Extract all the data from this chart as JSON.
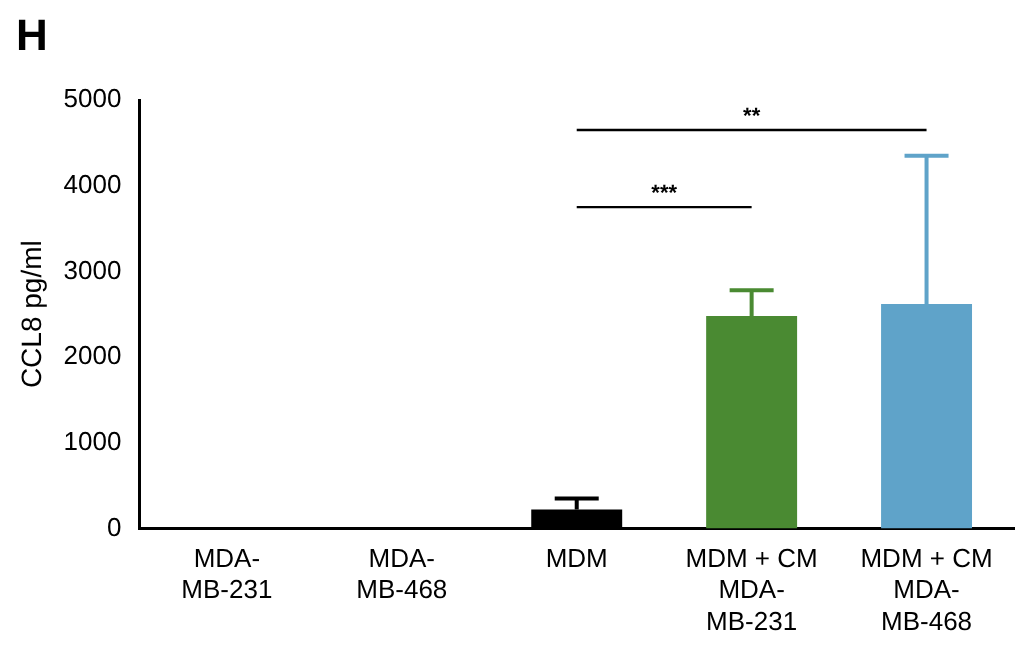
{
  "chart_data": {
    "type": "bar",
    "ylabel": "CCL8 pg/ml",
    "categories": [
      "MDA-\nMB-231",
      "MDA-\nMB-468",
      "MDM",
      "MDM + CM\nMDA-\nMB-231",
      "MDM + CM\nMDA-\nMB-468"
    ],
    "values": [
      0,
      0,
      220,
      2480,
      2620
    ],
    "colors": [
      "#000000",
      "#000000",
      "#000000",
      "#4a8a32",
      "#5fa3c9"
    ],
    "errors": [
      null,
      null,
      [
        220,
        350
      ],
      [
        2480,
        2780
      ],
      [
        2620,
        4350
      ]
    ],
    "ylim": [
      0,
      5000
    ],
    "yticks": [
      0,
      1000,
      2000,
      3000,
      4000,
      5000
    ],
    "grid": false,
    "legend": false,
    "annotations": [
      "H",
      "***",
      "**"
    ]
  }
}
